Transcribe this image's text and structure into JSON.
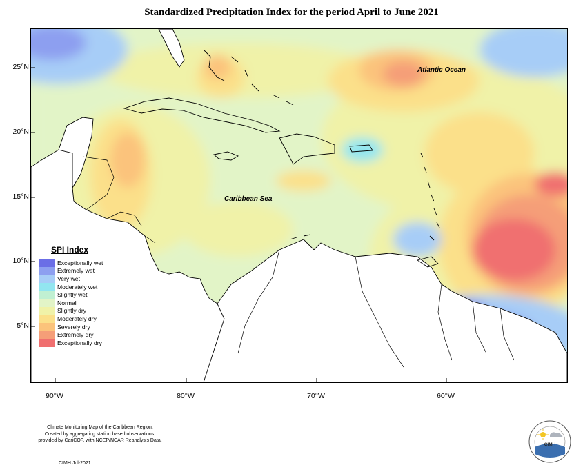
{
  "title": "Standardized Precipitation Index for the period April to June 2021",
  "map": {
    "labels": {
      "atlantic_ocean": "Atlantic Ocean",
      "caribbean_sea": "Caribbean Sea"
    },
    "latitude_ticks": [
      "25°N",
      "20°N",
      "15°N",
      "10°N",
      "5°N"
    ],
    "longitude_ticks": [
      "90°W",
      "80°W",
      "70°W",
      "60°W"
    ]
  },
  "legend": {
    "title": "SPI Index",
    "items": [
      {
        "label": "Exceptionally wet",
        "color": "#6b6ee6"
      },
      {
        "label": "Extremely wet",
        "color": "#8d9ff0"
      },
      {
        "label": "Very wet",
        "color": "#a7cdf7"
      },
      {
        "label": "Moderately wet",
        "color": "#92e6f0"
      },
      {
        "label": "Slightly wet",
        "color": "#c0f0d2"
      },
      {
        "label": "Normal",
        "color": "#e2f4c7"
      },
      {
        "label": "Slightly dry",
        "color": "#f0f2a8"
      },
      {
        "label": "Moderately dry",
        "color": "#fbe08a"
      },
      {
        "label": "Severely dry",
        "color": "#fbc37b"
      },
      {
        "label": "Extremely dry",
        "color": "#f59e78"
      },
      {
        "label": "Exceptionally dry",
        "color": "#f06f6f"
      }
    ]
  },
  "credit": {
    "lines": [
      "Climate Monitoring Map of the Caribbean Region.",
      "Created by aggregating station based observations,",
      "provided by CariCOF, with NCEP/NCAR Reanalysis Data."
    ],
    "date": "CIMH Jul-2021"
  },
  "logo": {
    "acronym": "CIMH"
  }
}
